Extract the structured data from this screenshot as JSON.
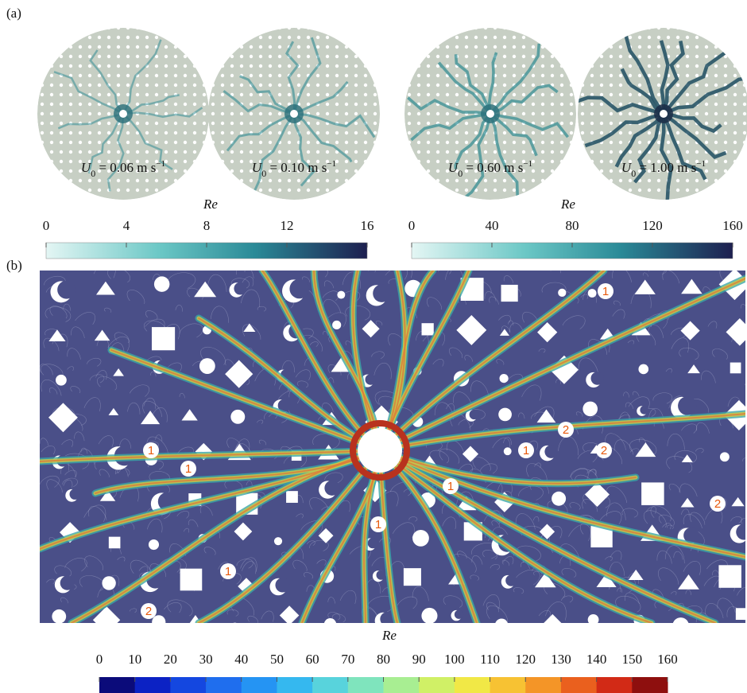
{
  "panel_a": {
    "label": "(a)",
    "cases": [
      {
        "symbol": "U",
        "subscript": "0",
        "text": " = 0.06 m s",
        "superscript": "−1"
      },
      {
        "symbol": "U",
        "subscript": "0",
        "text": " = 0.10 m s",
        "superscript": "−1"
      },
      {
        "symbol": "U",
        "subscript": "0",
        "text": " = 0.60 m s",
        "superscript": "−1"
      },
      {
        "symbol": "U",
        "subscript": "0",
        "text": " = 1.00 m s",
        "superscript": "−1"
      }
    ],
    "colorbars": [
      {
        "title": "Re",
        "range": [
          0,
          16
        ],
        "ticks": [
          0,
          4,
          8,
          12,
          16
        ]
      },
      {
        "title": "Re",
        "range": [
          0,
          160
        ],
        "ticks": [
          0,
          40,
          80,
          120,
          160
        ]
      }
    ]
  },
  "panel_b": {
    "label": "(b)",
    "region_labels": [
      "1",
      "1",
      "1",
      "1",
      "1",
      "1",
      "1",
      "2",
      "2",
      "2",
      "2"
    ],
    "colorbar": {
      "title": "Re",
      "range": [
        0,
        160
      ],
      "ticks": [
        0,
        10,
        20,
        30,
        40,
        50,
        60,
        70,
        80,
        90,
        100,
        110,
        120,
        130,
        140,
        150,
        160
      ]
    }
  }
}
